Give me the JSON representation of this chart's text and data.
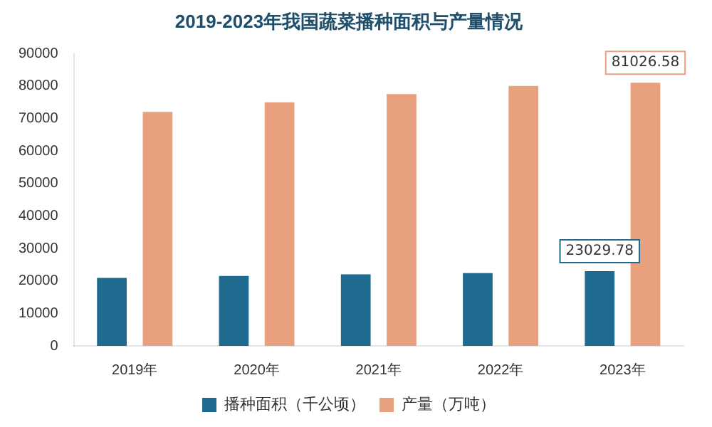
{
  "chart_data": {
    "type": "bar",
    "title": "2019-2023年我国蔬菜播种面积与产量情况",
    "categories": [
      "2019年",
      "2020年",
      "2021年",
      "2022年",
      "2023年"
    ],
    "series": [
      {
        "name": "播种面积（千公顷）",
        "color": "#1f6b8f",
        "values": [
          20900,
          21500,
          22000,
          22400,
          23029.78
        ],
        "value_labels": [
          null,
          null,
          null,
          null,
          "23029.78"
        ]
      },
      {
        "name": "产量（万吨）",
        "color": "#e9a07e",
        "values": [
          72000,
          75000,
          77500,
          80000,
          81026.58
        ],
        "value_labels": [
          null,
          null,
          null,
          null,
          "81026.58"
        ]
      }
    ],
    "ylim": [
      0,
      90000
    ],
    "yticks": [
      0,
      10000,
      20000,
      30000,
      40000,
      50000,
      60000,
      70000,
      80000,
      90000
    ],
    "grid": false,
    "legend": "bottom"
  }
}
